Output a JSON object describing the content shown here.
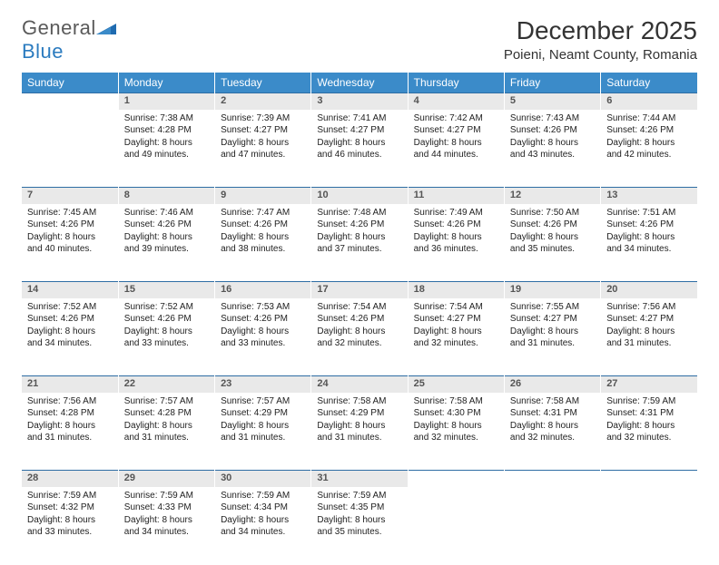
{
  "brand": {
    "text1": "General",
    "text2": "Blue"
  },
  "title": "December 2025",
  "location": "Poieni, Neamt County, Romania",
  "colors": {
    "header_bg": "#3b8bc9",
    "header_text": "#ffffff",
    "daynum_bg": "#e9e9e9",
    "row_border": "#2e6da4",
    "logo_gray": "#5a5a5a",
    "logo_blue": "#2b7bbf"
  },
  "weekdays": [
    "Sunday",
    "Monday",
    "Tuesday",
    "Wednesday",
    "Thursday",
    "Friday",
    "Saturday"
  ],
  "weeks": [
    [
      null,
      {
        "n": "1",
        "sr": "7:38 AM",
        "ss": "4:28 PM",
        "dl": "8 hours and 49 minutes."
      },
      {
        "n": "2",
        "sr": "7:39 AM",
        "ss": "4:27 PM",
        "dl": "8 hours and 47 minutes."
      },
      {
        "n": "3",
        "sr": "7:41 AM",
        "ss": "4:27 PM",
        "dl": "8 hours and 46 minutes."
      },
      {
        "n": "4",
        "sr": "7:42 AM",
        "ss": "4:27 PM",
        "dl": "8 hours and 44 minutes."
      },
      {
        "n": "5",
        "sr": "7:43 AM",
        "ss": "4:26 PM",
        "dl": "8 hours and 43 minutes."
      },
      {
        "n": "6",
        "sr": "7:44 AM",
        "ss": "4:26 PM",
        "dl": "8 hours and 42 minutes."
      }
    ],
    [
      {
        "n": "7",
        "sr": "7:45 AM",
        "ss": "4:26 PM",
        "dl": "8 hours and 40 minutes."
      },
      {
        "n": "8",
        "sr": "7:46 AM",
        "ss": "4:26 PM",
        "dl": "8 hours and 39 minutes."
      },
      {
        "n": "9",
        "sr": "7:47 AM",
        "ss": "4:26 PM",
        "dl": "8 hours and 38 minutes."
      },
      {
        "n": "10",
        "sr": "7:48 AM",
        "ss": "4:26 PM",
        "dl": "8 hours and 37 minutes."
      },
      {
        "n": "11",
        "sr": "7:49 AM",
        "ss": "4:26 PM",
        "dl": "8 hours and 36 minutes."
      },
      {
        "n": "12",
        "sr": "7:50 AM",
        "ss": "4:26 PM",
        "dl": "8 hours and 35 minutes."
      },
      {
        "n": "13",
        "sr": "7:51 AM",
        "ss": "4:26 PM",
        "dl": "8 hours and 34 minutes."
      }
    ],
    [
      {
        "n": "14",
        "sr": "7:52 AM",
        "ss": "4:26 PM",
        "dl": "8 hours and 34 minutes."
      },
      {
        "n": "15",
        "sr": "7:52 AM",
        "ss": "4:26 PM",
        "dl": "8 hours and 33 minutes."
      },
      {
        "n": "16",
        "sr": "7:53 AM",
        "ss": "4:26 PM",
        "dl": "8 hours and 33 minutes."
      },
      {
        "n": "17",
        "sr": "7:54 AM",
        "ss": "4:26 PM",
        "dl": "8 hours and 32 minutes."
      },
      {
        "n": "18",
        "sr": "7:54 AM",
        "ss": "4:27 PM",
        "dl": "8 hours and 32 minutes."
      },
      {
        "n": "19",
        "sr": "7:55 AM",
        "ss": "4:27 PM",
        "dl": "8 hours and 31 minutes."
      },
      {
        "n": "20",
        "sr": "7:56 AM",
        "ss": "4:27 PM",
        "dl": "8 hours and 31 minutes."
      }
    ],
    [
      {
        "n": "21",
        "sr": "7:56 AM",
        "ss": "4:28 PM",
        "dl": "8 hours and 31 minutes."
      },
      {
        "n": "22",
        "sr": "7:57 AM",
        "ss": "4:28 PM",
        "dl": "8 hours and 31 minutes."
      },
      {
        "n": "23",
        "sr": "7:57 AM",
        "ss": "4:29 PM",
        "dl": "8 hours and 31 minutes."
      },
      {
        "n": "24",
        "sr": "7:58 AM",
        "ss": "4:29 PM",
        "dl": "8 hours and 31 minutes."
      },
      {
        "n": "25",
        "sr": "7:58 AM",
        "ss": "4:30 PM",
        "dl": "8 hours and 32 minutes."
      },
      {
        "n": "26",
        "sr": "7:58 AM",
        "ss": "4:31 PM",
        "dl": "8 hours and 32 minutes."
      },
      {
        "n": "27",
        "sr": "7:59 AM",
        "ss": "4:31 PM",
        "dl": "8 hours and 32 minutes."
      }
    ],
    [
      {
        "n": "28",
        "sr": "7:59 AM",
        "ss": "4:32 PM",
        "dl": "8 hours and 33 minutes."
      },
      {
        "n": "29",
        "sr": "7:59 AM",
        "ss": "4:33 PM",
        "dl": "8 hours and 34 minutes."
      },
      {
        "n": "30",
        "sr": "7:59 AM",
        "ss": "4:34 PM",
        "dl": "8 hours and 34 minutes."
      },
      {
        "n": "31",
        "sr": "7:59 AM",
        "ss": "4:35 PM",
        "dl": "8 hours and 35 minutes."
      },
      null,
      null,
      null
    ]
  ]
}
